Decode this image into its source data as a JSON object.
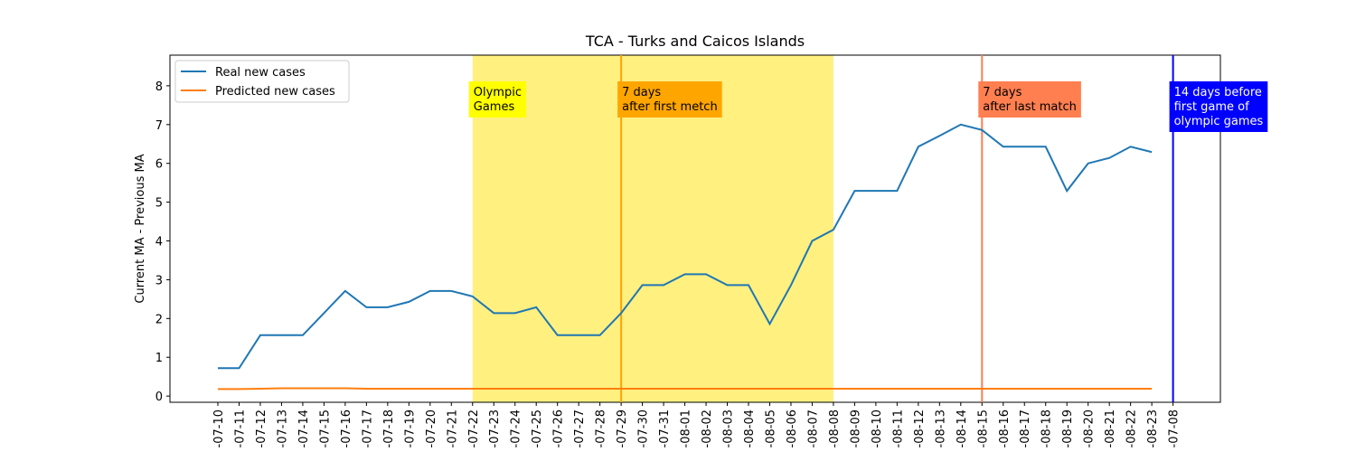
{
  "chart_data": {
    "type": "line",
    "title": "TCA - Turks and Caicos Islands",
    "ylabel": "Current MA - Previous MA",
    "categories": [
      "-07-10",
      "-07-11",
      "-07-12",
      "-07-13",
      "-07-14",
      "-07-15",
      "-07-16",
      "-07-17",
      "-07-18",
      "-07-19",
      "-07-20",
      "-07-21",
      "-07-22",
      "-07-23",
      "-07-24",
      "-07-25",
      "-07-26",
      "-07-27",
      "-07-28",
      "-07-29",
      "-07-30",
      "-07-31",
      "-08-01",
      "-08-02",
      "-08-03",
      "-08-04",
      "-08-05",
      "-08-06",
      "-08-07",
      "-08-08",
      "-08-09",
      "-08-10",
      "-08-11",
      "-08-12",
      "-08-13",
      "-08-14",
      "-08-15",
      "-08-16",
      "-08-17",
      "-08-18",
      "-08-19",
      "-08-20",
      "-08-21",
      "-08-22",
      "-08-23",
      "-07-08"
    ],
    "series": [
      {
        "name": "Real new cases",
        "color": "#1f77b4",
        "values": [
          0.72,
          0.72,
          1.57,
          1.57,
          1.57,
          2.14,
          2.71,
          2.29,
          2.29,
          2.43,
          2.71,
          2.71,
          2.57,
          2.14,
          2.14,
          2.29,
          1.57,
          1.57,
          1.57,
          2.14,
          2.86,
          2.86,
          3.14,
          3.14,
          2.86,
          2.86,
          1.86,
          2.86,
          4.0,
          4.29,
          5.29,
          5.29,
          5.29,
          6.43,
          6.71,
          7.0,
          6.86,
          6.43,
          6.43,
          6.43,
          5.29,
          6.0,
          6.14,
          6.43,
          6.29,
          null
        ]
      },
      {
        "name": "Predicted new cases",
        "color": "#ff7f0e",
        "values": [
          0.18,
          0.18,
          0.19,
          0.2,
          0.2,
          0.2,
          0.2,
          0.19,
          0.19,
          0.19,
          0.19,
          0.19,
          0.19,
          0.19,
          0.19,
          0.19,
          0.19,
          0.19,
          0.19,
          0.19,
          0.19,
          0.19,
          0.19,
          0.19,
          0.19,
          0.19,
          0.19,
          0.19,
          0.19,
          0.19,
          0.19,
          0.19,
          0.19,
          0.19,
          0.19,
          0.19,
          0.19,
          0.19,
          0.19,
          0.19,
          0.19,
          0.19,
          0.19,
          0.19,
          0.19,
          null
        ]
      }
    ],
    "ylim": [
      -0.16,
      8.79
    ],
    "yticks": [
      0,
      1,
      2,
      3,
      4,
      5,
      6,
      7,
      8
    ],
    "legend": "upper left",
    "spans": [
      {
        "start": "-07-22",
        "end": "-08-08",
        "color": "#fff080"
      }
    ],
    "vlines": [
      {
        "x": "-07-29",
        "color": "#ffa500"
      },
      {
        "x": "-08-15",
        "color": "#ff7f50"
      },
      {
        "x": "-07-08",
        "color": "#0000ff"
      }
    ],
    "annotations": [
      {
        "x": "-07-22",
        "lines": [
          "Olympic",
          "Games"
        ],
        "color": "#ffff00",
        "text_color": "#000000"
      },
      {
        "x": "-07-29",
        "lines": [
          "7 days",
          "after first metch"
        ],
        "color": "#ffa500",
        "text_color": "#000000"
      },
      {
        "x": "-08-15",
        "lines": [
          "7 days",
          "after last match"
        ],
        "color": "#ff7f50",
        "text_color": "#000000"
      },
      {
        "x": "-07-08",
        "lines": [
          "14 days before",
          "first game of",
          "olympic games"
        ],
        "color": "#0000ff",
        "text_color": "#ffffff"
      }
    ]
  }
}
